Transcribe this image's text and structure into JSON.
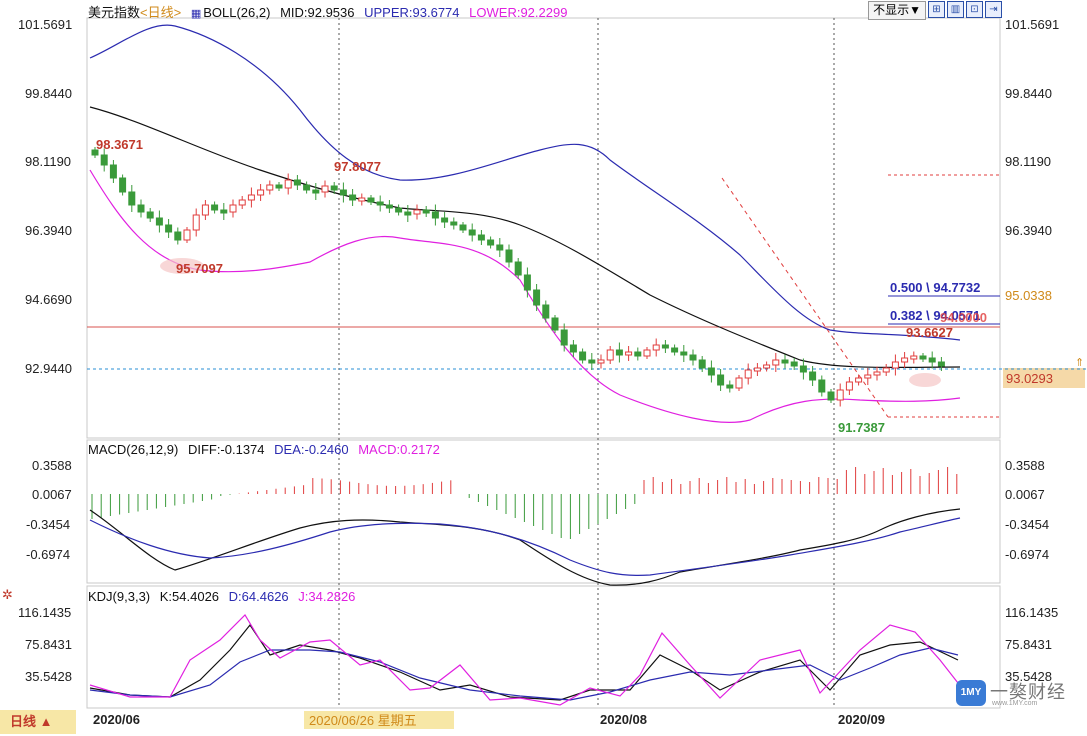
{
  "header": {
    "symbol": "美元指数",
    "period": "<日线>",
    "indicator": "BOLL(26,2)",
    "mid": "MID:92.9536",
    "upper": "UPPER:93.6774",
    "lower": "LOWER:92.2299",
    "display_dropdown": "不显示▼",
    "tool_icons": [
      "grid-icon",
      "layout-icon",
      "zoom-in-icon",
      "exit-icon"
    ]
  },
  "price_axis": {
    "ticks": [
      "101.5691",
      "99.8440",
      "98.1190",
      "96.3940",
      "94.6690",
      "92.9440"
    ],
    "current_price": "93.0293",
    "fib_level": "95.0338"
  },
  "annotations": {
    "high1": "98.3671",
    "low1": "95.7097",
    "high2": "97.8077",
    "low2": "91.7387",
    "fib_500": "0.500 \\ 94.7732",
    "fib_382": "0.382 \\ 94.0571",
    "hline_value": "94.0000",
    "recent_high": "93.6627"
  },
  "macd": {
    "title": "MACD(26,12,9)",
    "diff": "DIFF:-0.1374",
    "dea": "DEA:-0.2460",
    "macd": "MACD:0.2172",
    "ticks": [
      "0.3588",
      "0.0067",
      "-0.3454",
      "-0.6974"
    ]
  },
  "kdj": {
    "title": "KDJ(9,3,3)",
    "k": "K:54.4026",
    "d": "D:64.4626",
    "j": "J:34.2826",
    "ticks": [
      "116.1435",
      "75.8431",
      "35.5428"
    ]
  },
  "time_axis": {
    "labels": [
      "2020/06",
      "2020/06/26 星期五",
      "2020/08",
      "2020/09"
    ]
  },
  "footer": {
    "period_button": "日线 ▲",
    "logo_text": "一獒财经",
    "logo_url": "www.1MY.com",
    "logo_badge": "1MY"
  },
  "colors": {
    "up_candle": "#e03c3c",
    "down_candle": "#3a9a3a",
    "upper_band": "#2b2bb0",
    "mid_band": "#111111",
    "lower_band": "#e020e0",
    "crosshair": "#2a8fd6",
    "current_price_bg": "#f5d9a8"
  }
}
